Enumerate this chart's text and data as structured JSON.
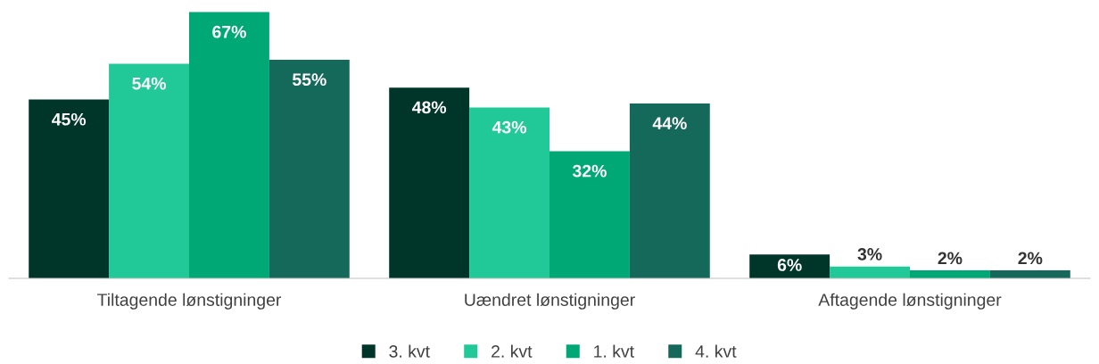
{
  "chart_data": {
    "type": "bar",
    "categories": [
      "Tiltagende lønstigninger",
      "Uændret lønstigninger",
      "Aftagende lønstigninger"
    ],
    "series": [
      {
        "name": "3. kvt",
        "color": "#003629",
        "values": [
          45,
          48,
          6
        ],
        "value_labels": [
          "45%",
          "48%",
          "6%"
        ]
      },
      {
        "name": "2. kvt",
        "color": "#20c997",
        "values": [
          54,
          43,
          3
        ],
        "value_labels": [
          "54%",
          "43%",
          "3%"
        ]
      },
      {
        "name": "1. kvt",
        "color": "#00a875",
        "values": [
          67,
          32,
          2
        ],
        "value_labels": [
          "67%",
          "32%",
          "2%"
        ]
      },
      {
        "name": "4. kvt",
        "color": "#14695a",
        "values": [
          55,
          44,
          2
        ],
        "value_labels": [
          "55%",
          "44%",
          "2%"
        ]
      }
    ],
    "legend": "bottom"
  }
}
